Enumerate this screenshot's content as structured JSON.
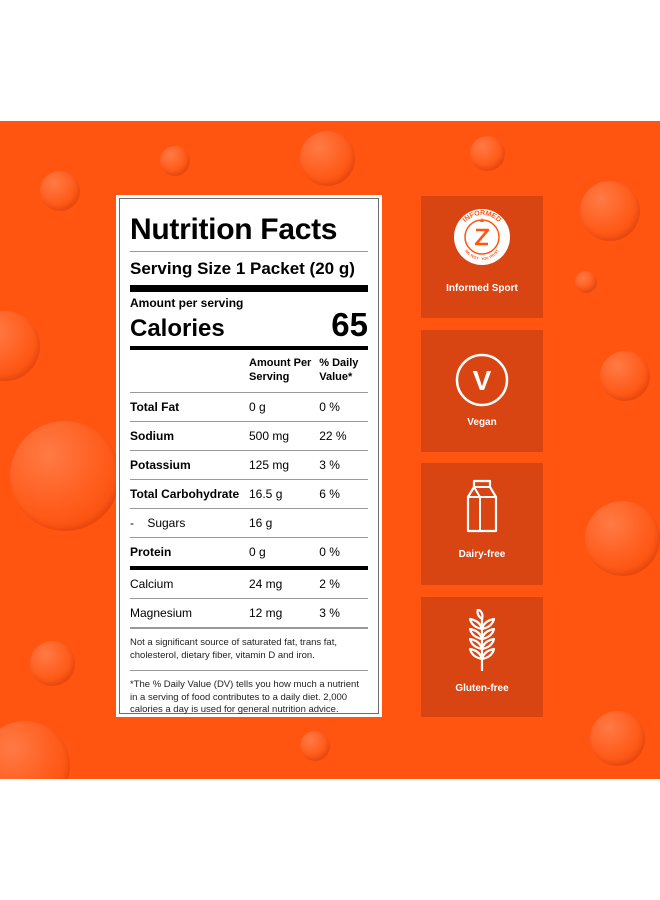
{
  "label": {
    "title": "Nutrition Facts",
    "serving": "Serving Size 1 Packet (20 g)",
    "amount_per_serving": "Amount per serving",
    "calories_label": "Calories",
    "calories_value": "65",
    "col_amount": "Amount Per Serving",
    "col_dv": "% Daily Value*",
    "rows": [
      {
        "name": "Total Fat",
        "amount": "0 g",
        "dv": "0 %",
        "bold": true
      },
      {
        "name": "Sodium",
        "amount": "500 mg",
        "dv": "22 %",
        "bold": true
      },
      {
        "name": "Potassium",
        "amount": "125 mg",
        "dv": "3 %",
        "bold": true
      },
      {
        "name": "Total Carbohydrate",
        "amount": "16.5 g",
        "dv": "6 %",
        "bold": true
      },
      {
        "name": "-    Sugars",
        "amount": "16 g",
        "dv": "",
        "bold": false
      },
      {
        "name": "Protein",
        "amount": "0 g",
        "dv": "0 %",
        "bold": true
      },
      {
        "name": "Calcium",
        "amount": "24 mg",
        "dv": "2 %",
        "bold": false
      },
      {
        "name": "Magnesium",
        "amount": "12 mg",
        "dv": "3 %",
        "bold": false
      }
    ],
    "note1": "Not a significant source of saturated fat, trans fat, cholesterol, dietary fiber, vitamin D and iron.",
    "note2": "*The % Daily Value (DV) tells you how much a nutrient in a serving of food contributes to a daily diet. 2,000 calories a day is used for general nutrition advice."
  },
  "badges": [
    {
      "caption": "Informed Sport",
      "icon": "informed-sport-logo",
      "logo_text_top": "INFORMED",
      "logo_text_bottom": "WE TEST · YOU TRUST"
    },
    {
      "caption": "Vegan",
      "icon": "vegan-v-icon",
      "icon_text": "V"
    },
    {
      "caption": "Dairy-free",
      "icon": "milk-carton-icon"
    },
    {
      "caption": "Gluten-free",
      "icon": "wheat-icon"
    }
  ],
  "colors": {
    "banner": "#ff5511",
    "badge": "#d94413"
  }
}
